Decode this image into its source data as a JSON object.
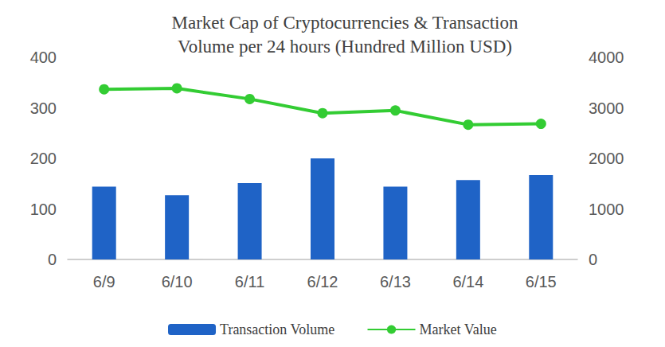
{
  "chart_data": {
    "type": "bar",
    "title": "Market Cap of Cryptocurrencies & Transaction\nVolume per 24 hours (Hundred Million USD)",
    "categories": [
      "6/9",
      "6/10",
      "6/11",
      "6/12",
      "6/13",
      "6/14",
      "6/15"
    ],
    "series": [
      {
        "name": "Transaction Volume",
        "type": "bar",
        "color": "#1f63c6",
        "values": [
          144,
          127,
          151,
          200,
          144,
          157,
          167
        ]
      },
      {
        "name": "Market Value",
        "type": "line",
        "axis": "y2",
        "marker": "circle",
        "color": "#33cc33",
        "values": [
          3368,
          3386,
          3175,
          2895,
          2947,
          2667,
          2684
        ]
      }
    ],
    "ylim": [
      0,
      400
    ],
    "yticks": [
      0,
      100,
      200,
      300,
      400
    ],
    "y2lim": [
      0,
      4000
    ],
    "y2ticks": [
      0,
      1000,
      2000,
      3000,
      4000
    ],
    "grid": false,
    "legend": "bottom"
  }
}
